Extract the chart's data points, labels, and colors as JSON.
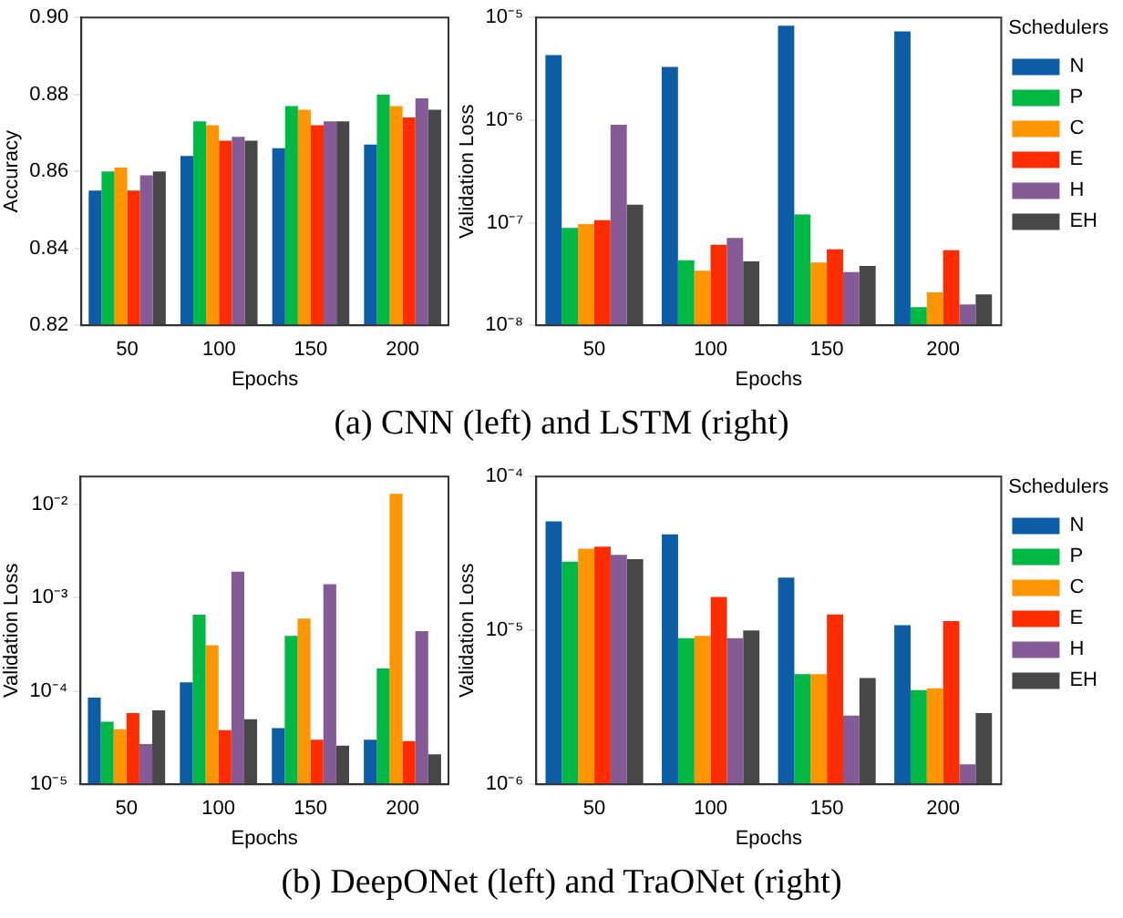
{
  "chart_data": [
    {
      "type": "bar",
      "xlabel": "Epochs",
      "ylabel": "Accuracy",
      "categories": [
        "50",
        "100",
        "150",
        "200"
      ],
      "ylim": [
        0.82,
        0.9
      ],
      "yticks": [
        0.82,
        0.84,
        0.86,
        0.88,
        {
          "value": 0.9,
          "label": "0.90"
        }
      ],
      "grid": false,
      "legend": false,
      "annotations": [
        "(a) CNN (left) and LSTM (right)"
      ],
      "series": [
        {
          "color": "#0c5da5",
          "values": [
            0.855,
            0.864,
            0.866,
            0.867
          ]
        },
        {
          "color": "#00b945",
          "values": [
            0.86,
            0.873,
            0.877,
            0.88
          ]
        },
        {
          "color": "#ff9500",
          "values": [
            0.861,
            0.872,
            0.876,
            0.877
          ]
        },
        {
          "color": "#ff2c00",
          "values": [
            0.855,
            0.868,
            0.872,
            0.874
          ]
        },
        {
          "color": "#845b97",
          "values": [
            0.859,
            0.869,
            0.873,
            0.879
          ]
        },
        {
          "color": "#474747",
          "values": [
            0.86,
            0.868,
            0.873,
            0.876
          ]
        }
      ]
    },
    {
      "type": "bar",
      "xlabel": "Epochs",
      "ylabel": "Validation Loss",
      "categories": [
        "50",
        "100",
        "150",
        "200"
      ],
      "log": "y",
      "ylim": [
        1e-08,
        1e-05
      ],
      "yticks": [
        {
          "value": 1e-08,
          "label": "10⁻⁸"
        },
        {
          "value": 1e-07,
          "label": "10⁻⁷"
        },
        {
          "value": 1e-06,
          "label": "10⁻⁶"
        },
        {
          "value": 1e-05,
          "label": "10⁻⁵"
        }
      ],
      "grid": false,
      "legend": "right",
      "legend_title": "Schedulers",
      "series": [
        {
          "name": "N",
          "color": "#0c5da5",
          "values": [
            4.3e-06,
            3.3e-06,
            8.3e-06,
            7.3e-06
          ]
        },
        {
          "name": "P",
          "color": "#00b945",
          "values": [
            8.9e-08,
            4.3e-08,
            1.2e-07,
            1.5e-08
          ]
        },
        {
          "name": "C",
          "color": "#ff9500",
          "values": [
            9.7e-08,
            3.4e-08,
            4.1e-08,
            2.1e-08
          ]
        },
        {
          "name": "E",
          "color": "#ff2c00",
          "values": [
            1.06e-07,
            6.1e-08,
            5.5e-08,
            5.4e-08
          ]
        },
        {
          "name": "H",
          "color": "#845b97",
          "values": [
            9e-07,
            7.1e-08,
            3.3e-08,
            1.6e-08
          ]
        },
        {
          "name": "EH",
          "color": "#474747",
          "values": [
            1.5e-07,
            4.2e-08,
            3.8e-08,
            2e-08
          ]
        }
      ]
    },
    {
      "type": "bar",
      "xlabel": "Epochs",
      "ylabel": "Validation Loss",
      "categories": [
        "50",
        "100",
        "150",
        "200"
      ],
      "log": "y",
      "ylim": [
        1e-05,
        0.02
      ],
      "yticks": [
        {
          "value": 1e-05,
          "label": "10⁻⁵"
        },
        {
          "value": 0.0001,
          "label": "10⁻⁴"
        },
        {
          "value": 0.001,
          "label": "10⁻³"
        },
        {
          "value": 0.01,
          "label": "10⁻²"
        }
      ],
      "grid": false,
      "legend": false,
      "annotations": [
        "(b) DeepONet (left) and TraONet (right)"
      ],
      "series": [
        {
          "color": "#0c5da5",
          "values": [
            8.5e-05,
            0.000124,
            4e-05,
            3e-05
          ]
        },
        {
          "color": "#00b945",
          "values": [
            4.7e-05,
            0.00066,
            0.00039,
            0.000175
          ]
        },
        {
          "color": "#ff9500",
          "values": [
            3.9e-05,
            0.00031,
            0.0006,
            0.013
          ]
        },
        {
          "color": "#ff2c00",
          "values": [
            5.8e-05,
            3.8e-05,
            3e-05,
            2.9e-05
          ]
        },
        {
          "color": "#845b97",
          "values": [
            2.7e-05,
            0.0019,
            0.0014,
            0.00044
          ]
        },
        {
          "color": "#474747",
          "values": [
            6.2e-05,
            5e-05,
            2.6e-05,
            2.1e-05
          ]
        }
      ]
    },
    {
      "type": "bar",
      "xlabel": "Epochs",
      "ylabel": "Validation Loss",
      "categories": [
        "50",
        "100",
        "150",
        "200"
      ],
      "log": "y",
      "ylim": [
        1e-06,
        0.0001
      ],
      "yticks": [
        {
          "value": 1e-06,
          "label": "10⁻⁶"
        },
        {
          "value": 1e-05,
          "label": "10⁻⁵"
        },
        {
          "value": 0.0001,
          "label": "10⁻⁴"
        }
      ],
      "grid": false,
      "legend": "right",
      "legend_title": "Schedulers",
      "series": [
        {
          "name": "N",
          "color": "#0c5da5",
          "values": [
            5.1e-05,
            4.2e-05,
            2.2e-05,
            1.08e-05
          ]
        },
        {
          "name": "P",
          "color": "#00b945",
          "values": [
            2.8e-05,
            8.9e-06,
            5.2e-06,
            4.1e-06
          ]
        },
        {
          "name": "C",
          "color": "#ff9500",
          "values": [
            3.4e-05,
            9.2e-06,
            5.2e-06,
            4.2e-06
          ]
        },
        {
          "name": "E",
          "color": "#ff2c00",
          "values": [
            3.5e-05,
            1.65e-05,
            1.27e-05,
            1.15e-05
          ]
        },
        {
          "name": "H",
          "color": "#845b97",
          "values": [
            3.1e-05,
            8.9e-06,
            2.8e-06,
            1.35e-06
          ]
        },
        {
          "name": "EH",
          "color": "#474747",
          "values": [
            2.9e-05,
            1e-05,
            4.9e-06,
            2.9e-06
          ]
        }
      ]
    }
  ]
}
